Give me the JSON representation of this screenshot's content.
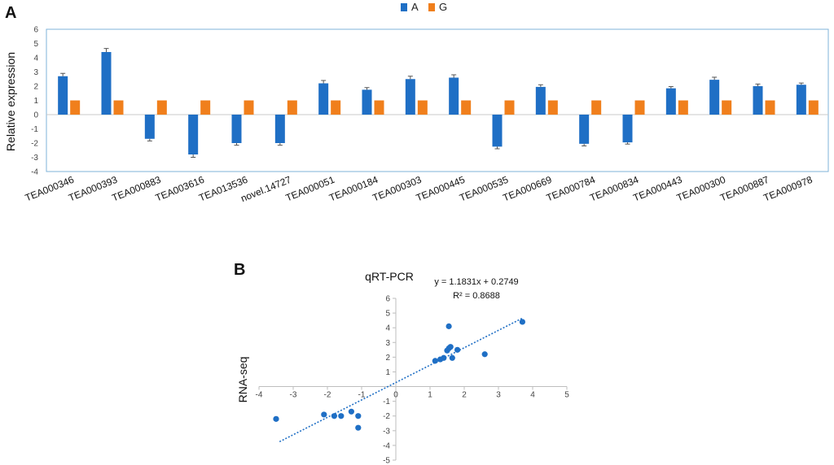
{
  "chart_data": [
    {
      "panel": "A",
      "type": "bar",
      "ylabel": "Relative expression",
      "ylim": [
        -4,
        6
      ],
      "yticks": [
        -4,
        -3,
        -2,
        -1,
        0,
        1,
        2,
        3,
        4,
        5,
        6
      ],
      "legend_position": "top-center",
      "categories": [
        "TEA000346",
        "TEA000393",
        "TEA000883",
        "TEA003616",
        "TEA013536",
        "novel.14727",
        "TEA000051",
        "TEA000184",
        "TEA000303",
        "TEA000445",
        "TEA000535",
        "TEA000669",
        "TEA000784",
        "TEA000834",
        "TEA000443",
        "TEA000300",
        "TEA000887",
        "TEA000978"
      ],
      "series": [
        {
          "name": "A",
          "color": "#1f6fc5",
          "values": [
            2.7,
            4.4,
            -1.7,
            -2.8,
            -2.0,
            -2.0,
            2.2,
            1.75,
            2.5,
            2.6,
            -2.25,
            1.95,
            -2.05,
            -1.95,
            1.85,
            2.45,
            2.0,
            2.1
          ],
          "errors": [
            0.2,
            0.25,
            0.15,
            0.2,
            0.15,
            0.15,
            0.2,
            0.15,
            0.2,
            0.2,
            0.15,
            0.15,
            0.15,
            0.12,
            0.12,
            0.18,
            0.15,
            0.12
          ]
        },
        {
          "name": "G",
          "color": "#f07f1c",
          "values": [
            1,
            1,
            1,
            1,
            1,
            1,
            1,
            1,
            1,
            1,
            1,
            1,
            1,
            1,
            1,
            1,
            1,
            1
          ]
        }
      ]
    },
    {
      "panel": "B",
      "type": "scatter",
      "title": "qRT-PCR",
      "ylabel": "RNA-seq",
      "xlim": [
        -4,
        5
      ],
      "ylim": [
        -5,
        6
      ],
      "xticks": [
        -4,
        -3,
        -2,
        -1,
        0,
        1,
        2,
        3,
        4,
        5
      ],
      "yticks": [
        -5,
        -4,
        -3,
        -2,
        -1,
        0,
        1,
        2,
        3,
        4,
        5,
        6
      ],
      "trendline": {
        "slope": 1.1831,
        "intercept": 0.2749,
        "x_range": [
          -3.4,
          3.7
        ]
      },
      "equation": "y = 1.1831x + 0.2749",
      "r_squared": "R² = 0.8688",
      "color": "#1f6fc5",
      "x": [
        -3.5,
        -2.1,
        -1.8,
        -1.6,
        -1.3,
        -1.1,
        -1.1,
        1.15,
        1.3,
        1.4,
        1.5,
        1.55,
        1.6,
        1.65,
        1.8,
        2.6,
        3.7,
        1.55
      ],
      "y": [
        -2.2,
        -1.9,
        -2.0,
        -2.0,
        -1.7,
        -2.0,
        -2.8,
        1.75,
        1.85,
        1.95,
        2.45,
        2.6,
        2.7,
        1.95,
        2.5,
        2.2,
        4.4,
        4.1
      ]
    }
  ]
}
